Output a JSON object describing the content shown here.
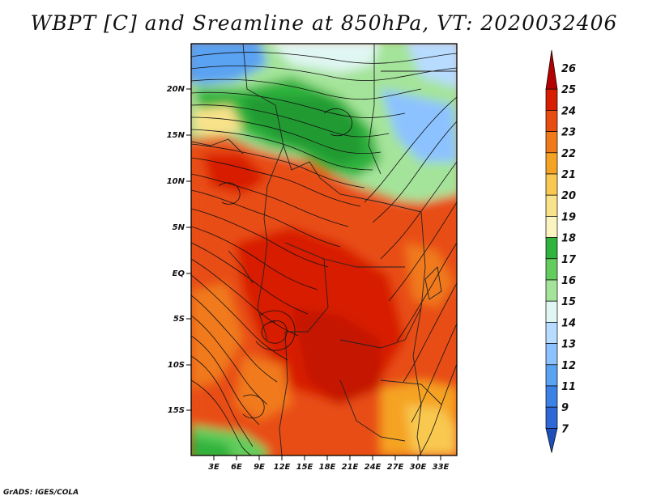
{
  "title": "WBPT [C] and Sreamline at 850hPa, VT: 2020032406",
  "credit": "GrADS: IGES/COLA",
  "lat_labels": [
    "20N",
    "15N",
    "10N",
    "5N",
    "EQ",
    "5S",
    "10S",
    "15S"
  ],
  "lon_labels": [
    "3E",
    "6E",
    "9E",
    "12E",
    "15E",
    "18E",
    "21E",
    "24E",
    "27E",
    "30E",
    "33E"
  ],
  "colorbar": {
    "labels": [
      "26",
      "25",
      "24",
      "23",
      "22",
      "21",
      "20",
      "19",
      "18",
      "17",
      "16",
      "15",
      "14",
      "13",
      "12",
      "11",
      "9",
      "7"
    ],
    "colors": [
      "#b30000",
      "#d81e00",
      "#e84d12",
      "#f07a1a",
      "#f5a324",
      "#f8c850",
      "#f8e28a",
      "#fbf4c0",
      "#2fb33c",
      "#62cd5c",
      "#a4e49a",
      "#e0f6f2",
      "#b8dcff",
      "#8cc2ff",
      "#5aa2f2",
      "#3b82e6",
      "#2d68d6",
      "#1e4fb8"
    ]
  }
}
